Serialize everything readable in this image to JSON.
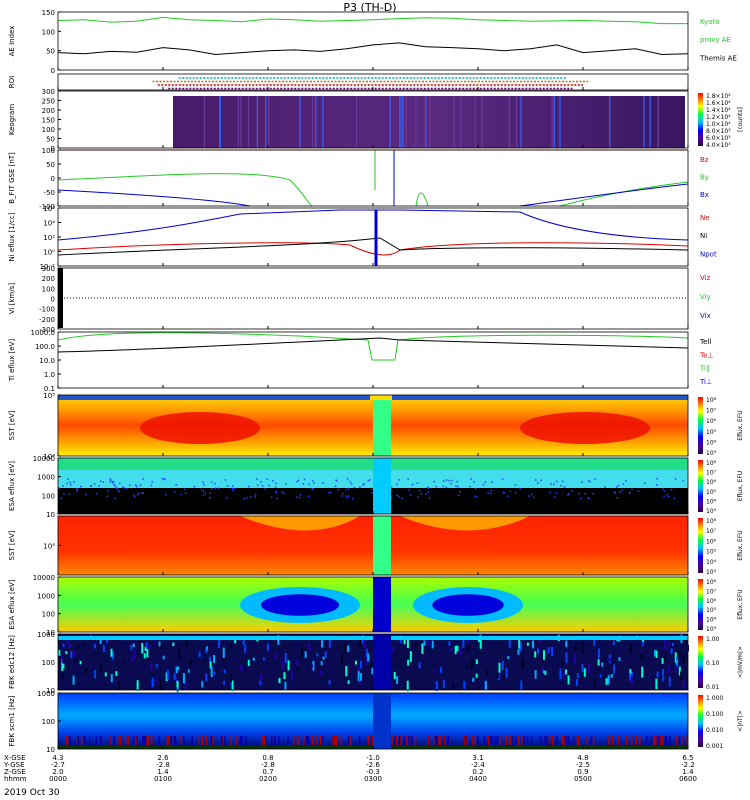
{
  "title": "P3 (TH-D)",
  "date": "2019 Oct 30",
  "colors": {
    "ae_kyoto": "#22cc22",
    "ae_themis": "#000000",
    "red": "#dd0000",
    "green": "#22cc22",
    "blue": "#0000cc",
    "black": "#000000"
  },
  "chart_data": [
    {
      "type": "line",
      "name": "ae",
      "ylabel": "AE Index",
      "ylim": [
        0,
        150
      ],
      "yticks": [
        "150",
        "100",
        "50",
        "0"
      ],
      "legend": [
        {
          "label": "Kyoto",
          "color": "#22cc22"
        },
        {
          "label": "proxy AE",
          "color": "#22cc22"
        },
        {
          "label": "Themis AE",
          "color": "#000000"
        }
      ],
      "series": [
        {
          "name": "Kyoto proxy AE",
          "color": "#22cc22",
          "values": [
            128,
            130,
            124,
            126,
            136,
            130,
            128,
            125,
            132,
            130,
            126,
            128,
            130,
            133,
            135,
            134,
            130,
            128,
            126,
            127,
            128,
            126,
            125,
            120,
            120
          ]
        },
        {
          "name": "Themis AE",
          "color": "#000000",
          "values": [
            45,
            42,
            48,
            46,
            58,
            52,
            40,
            45,
            50,
            52,
            48,
            55,
            65,
            70,
            60,
            58,
            55,
            50,
            55,
            65,
            45,
            50,
            55,
            40,
            42
          ]
        }
      ]
    },
    {
      "type": "line",
      "name": "roi",
      "ylabel": "ROI",
      "yticks": [],
      "rows": [
        {
          "color": "#00aaaa",
          "x": [
            1.15,
            4.85
          ]
        },
        {
          "color": "#cc6600",
          "x": [
            0.9,
            5.05
          ]
        },
        {
          "color": "#cc0000",
          "x": [
            0.95,
            5.0
          ]
        },
        {
          "color": "#660066",
          "x": [
            1.05,
            4.9
          ]
        }
      ]
    },
    {
      "type": "heatmap",
      "name": "keogram",
      "ylabel": "Keogram",
      "ylim": [
        0,
        300
      ],
      "yticks": [
        "300",
        "250",
        "200",
        "150",
        "100",
        "50",
        "0"
      ],
      "colorbar": {
        "label": "[counts]",
        "ticks": [
          "1.8×10⁴",
          "1.6×10⁴",
          "1.4×10⁴",
          "1.2×10⁴",
          "1.0×10⁴",
          "8.0×10³",
          "6.0×10³",
          "4.0×10³"
        ]
      }
    },
    {
      "type": "line",
      "name": "bfield",
      "ylabel": "B_FIT GSE [nT]",
      "ylim": [
        -100,
        100
      ],
      "yticks": [
        "100",
        "50",
        "0",
        "-50",
        "-100"
      ],
      "legend": [
        {
          "label": "Bz",
          "color": "#dd0000"
        },
        {
          "label": "By",
          "color": "#22cc22"
        },
        {
          "label": "Bx",
          "color": "#0000cc"
        }
      ]
    },
    {
      "type": "line",
      "name": "density",
      "ylabel": "Ni eflux [1/cc]",
      "yticks": [
        "10⁶",
        "10⁴",
        "10²",
        "10⁰",
        "10⁻²"
      ],
      "legend": [
        {
          "label": "Ne",
          "color": "#dd0000"
        },
        {
          "label": "Ni",
          "color": "#000000"
        },
        {
          "label": "Npot",
          "color": "#0000cc"
        }
      ]
    },
    {
      "type": "line",
      "name": "velocity",
      "ylabel": "Vi [km/s]",
      "ylim": [
        -300,
        300
      ],
      "yticks": [
        "300",
        "200",
        "100",
        "0",
        "-100",
        "-200",
        "-300"
      ],
      "legend": [
        {
          "label": "Viz",
          "color": "#dd0000"
        },
        {
          "label": "Viy",
          "color": "#22cc22"
        },
        {
          "label": "Vix",
          "color": "#0000cc"
        }
      ]
    },
    {
      "type": "line",
      "name": "temperature",
      "ylabel": "Ti eflux [eV]",
      "yticks": [
        "1000.0",
        "100.0",
        "10.0",
        "1.0",
        "0.1"
      ],
      "legend": [
        {
          "label": "Tell",
          "color": "#000000"
        },
        {
          "label": "Te⊥",
          "color": "#dd0000"
        },
        {
          "label": "Ti∥",
          "color": "#22cc22"
        },
        {
          "label": "Ti⊥",
          "color": "#0000cc"
        }
      ]
    },
    {
      "type": "heatmap",
      "name": "sst_e",
      "ylabel": "SST [eV]",
      "yticks": [
        "10⁵",
        "10⁴"
      ],
      "colorbar": {
        "label": "Eflux, EFU",
        "ticks": [
          "10⁸",
          "10⁷",
          "10⁶",
          "10⁵",
          "10⁴",
          "10³"
        ]
      }
    },
    {
      "type": "heatmap",
      "name": "esa_e",
      "ylabel": "ESA eflux [eV]",
      "yticks": [
        "10000",
        "1000",
        "100",
        "10"
      ],
      "colorbar": {
        "label": "Eflux, EFU",
        "ticks": [
          "10⁸",
          "10⁷",
          "10⁶",
          "10⁵",
          "10⁴",
          "10³"
        ]
      }
    },
    {
      "type": "heatmap",
      "name": "sst_i",
      "ylabel": "SST [eV]",
      "yticks": [
        "10⁵"
      ],
      "colorbar": {
        "label": "Eflux, EFU",
        "ticks": [
          "10⁸",
          "10⁷",
          "10⁶",
          "10⁵",
          "10⁴",
          "10³"
        ]
      }
    },
    {
      "type": "heatmap",
      "name": "esa_i",
      "ylabel": "ESA eflux [eV]",
      "yticks": [
        "10000",
        "1000",
        "100",
        "10"
      ],
      "colorbar": {
        "label": "Eflux, EFU",
        "ticks": [
          "10⁸",
          "10⁷",
          "10⁶",
          "10⁵",
          "10⁴",
          "10³"
        ]
      }
    },
    {
      "type": "heatmap",
      "name": "fbk_e",
      "ylabel": "FBK edc12 [Hz]",
      "yticks": [
        "1000",
        "100",
        "10"
      ],
      "colorbar": {
        "label": "<|mV/m|>",
        "ticks": [
          "1.00",
          "0.10",
          "0.01"
        ]
      }
    },
    {
      "type": "heatmap",
      "name": "fbk_b",
      "ylabel": "FBK scm1 [Hz]",
      "yticks": [
        "1000",
        "100",
        "10"
      ],
      "colorbar": {
        "label": "<|nT|>",
        "ticks": [
          "1.000",
          "0.100",
          "0.010",
          "0.001"
        ]
      }
    }
  ],
  "xaxis": {
    "ticks": [
      0,
      1,
      2,
      3,
      4,
      5,
      6
    ],
    "row_labels": [
      "X-GSE",
      "Y-GSE",
      "Z-GSE",
      "hhmm"
    ],
    "rows": [
      [
        "4.3",
        "2.6",
        "0.8",
        "-1.0",
        "3.1",
        "4.8",
        "6.5"
      ],
      [
        "-2.7",
        "-2.8",
        "-2.8",
        "-2.6",
        "-2.4",
        "-2.5",
        "-2.2"
      ],
      [
        "2.0",
        "1.4",
        "0.7",
        "-0.3",
        "0.2",
        "0.9",
        "1.4"
      ],
      [
        "0000",
        "0100",
        "0200",
        "0300",
        "0400",
        "0500",
        "0600"
      ]
    ]
  }
}
